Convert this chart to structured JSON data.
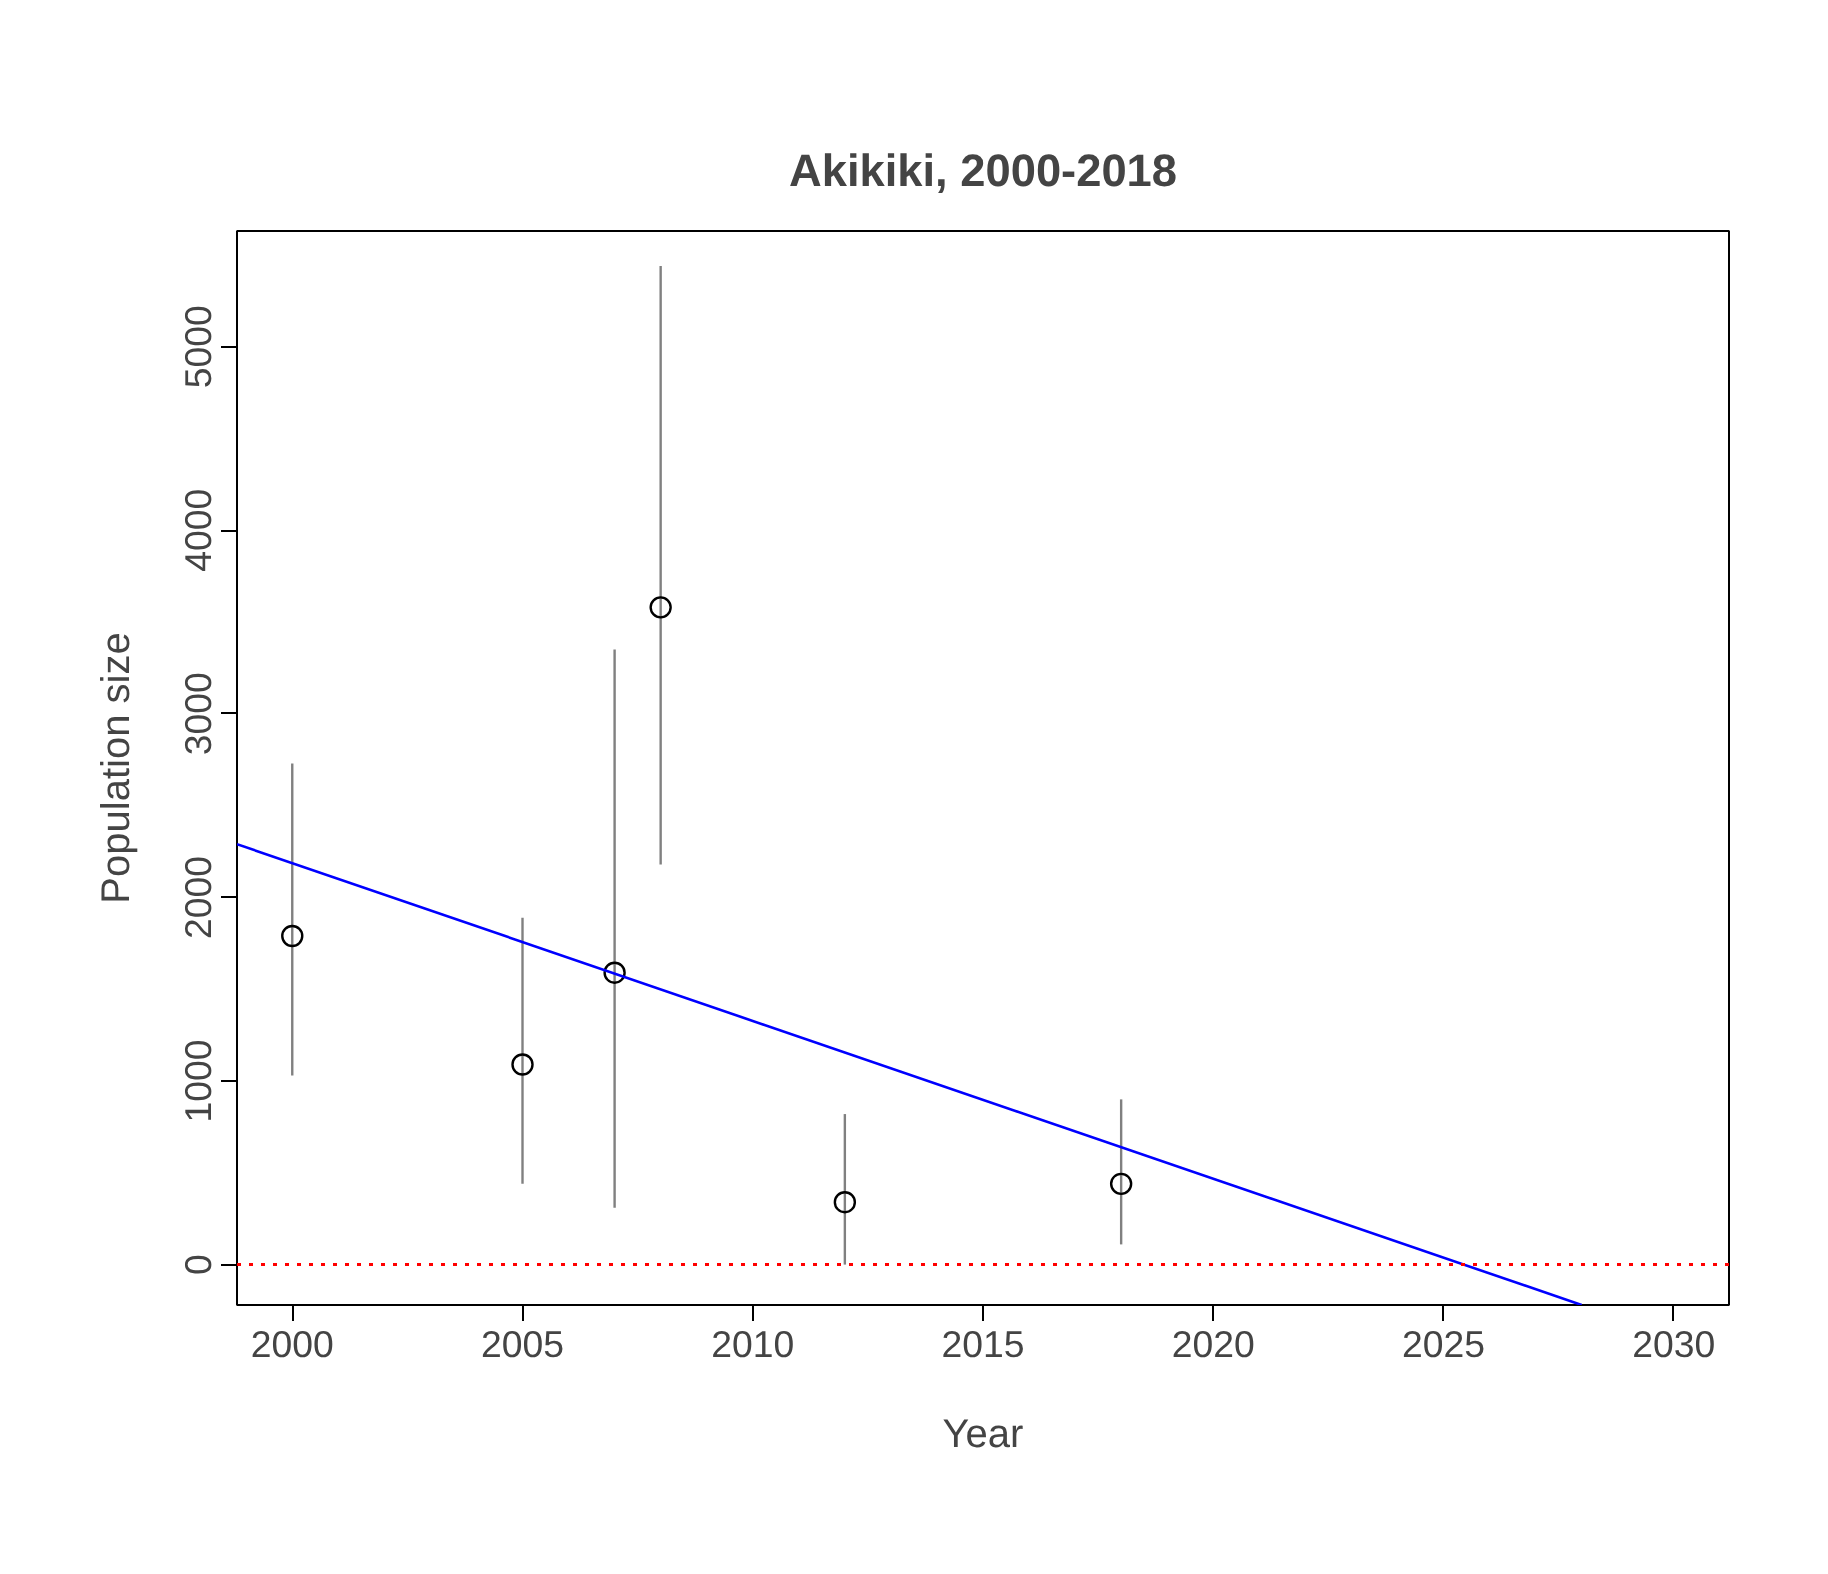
{
  "chart_data": {
    "type": "scatter",
    "title": "Akikiki, 2000-2018",
    "xlabel": "Year",
    "ylabel": "Population size",
    "x": [
      2000,
      2005,
      2007,
      2008,
      2012,
      2018
    ],
    "series": [
      {
        "color": "#000000",
        "marker": "circle",
        "values": [
          1790,
          1090,
          1590,
          3580,
          340,
          440
        ],
        "errors": [
          [
            1030,
            2730
          ],
          [
            440,
            1890
          ],
          [
            310,
            3350
          ],
          [
            2180,
            5440
          ],
          [
            0,
            820
          ],
          [
            110,
            900
          ]
        ]
      },
      {
        "type": "line",
        "color": "#0000ff",
        "x": [
          1998.8,
          2028
        ],
        "values": [
          2290,
          -220
        ]
      }
    ],
    "ref_lines": [
      {
        "axis": "y",
        "value": 0,
        "color": "#ff0000",
        "line_style": "dotted"
      }
    ],
    "xlim": [
      1998.8,
      2031.2
    ],
    "ylim": [
      -220,
      5630
    ],
    "xticks": [
      2000,
      2005,
      2010,
      2015,
      2020,
      2025,
      2030
    ],
    "yticks": [
      0,
      1000,
      2000,
      3000,
      4000,
      5000
    ],
    "grid": false
  }
}
